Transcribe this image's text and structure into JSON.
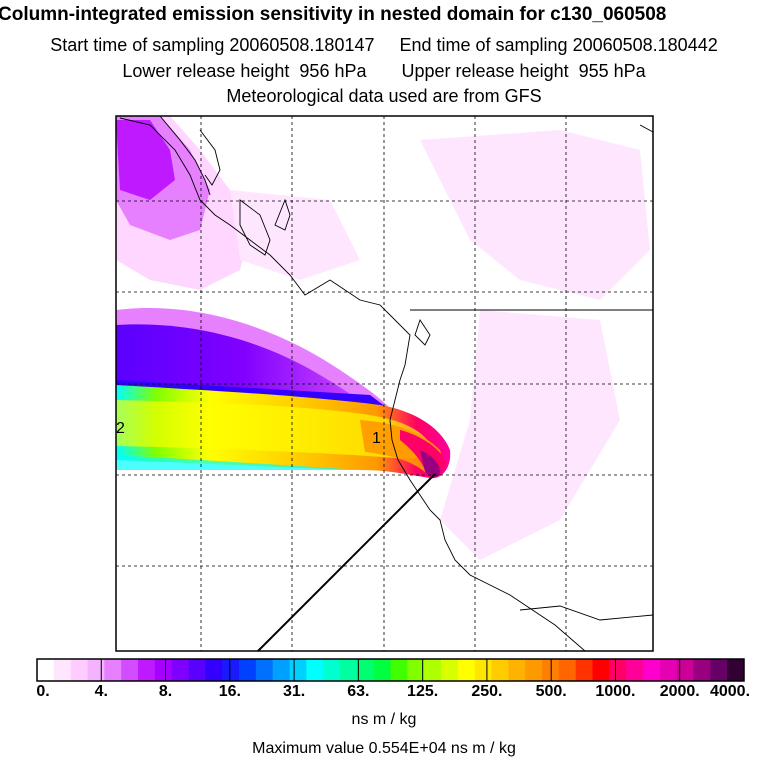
{
  "header": {
    "title": "Column-integrated emission sensitivity in nested domain for c130_060508",
    "line1": "Start time of sampling 20060508.180147     End time of sampling 20060508.180442",
    "line2": "Lower release height  956 hPa       Upper release height  955 hPa",
    "line3": "Meteorological data used are from GFS"
  },
  "map": {
    "markers": [
      "2",
      "1"
    ]
  },
  "colorbar": {
    "tick_labels": [
      "0.",
      "4.",
      "8.",
      "16.",
      "31.",
      "63.",
      "125.",
      "250.",
      "500.",
      "1000.",
      "2000.",
      "4000."
    ],
    "colors": [
      "#ffffff",
      "#ffe6ff",
      "#ffccff",
      "#f5b3ff",
      "#e680ff",
      "#d24dff",
      "#bf1aff",
      "#a600ff",
      "#8000ff",
      "#5a00ff",
      "#3300ff",
      "#1a1aff",
      "#0040ff",
      "#0070ff",
      "#00a0ff",
      "#00d0ff",
      "#00ffff",
      "#00ffd0",
      "#00ffa0",
      "#00ff70",
      "#00ff40",
      "#40ff00",
      "#80ff00",
      "#b0ff00",
      "#d8ff00",
      "#ffff00",
      "#ffe600",
      "#ffcc00",
      "#ffb300",
      "#ff9900",
      "#ff8000",
      "#ff6600",
      "#ff3300",
      "#ff0000",
      "#ff0066",
      "#ff0099",
      "#ff00cc",
      "#e600b3",
      "#cc0099",
      "#990080",
      "#660066",
      "#330033"
    ],
    "unit": "ns m / kg",
    "max_value": "Maximum value  0.554E+04 ns m / kg"
  }
}
